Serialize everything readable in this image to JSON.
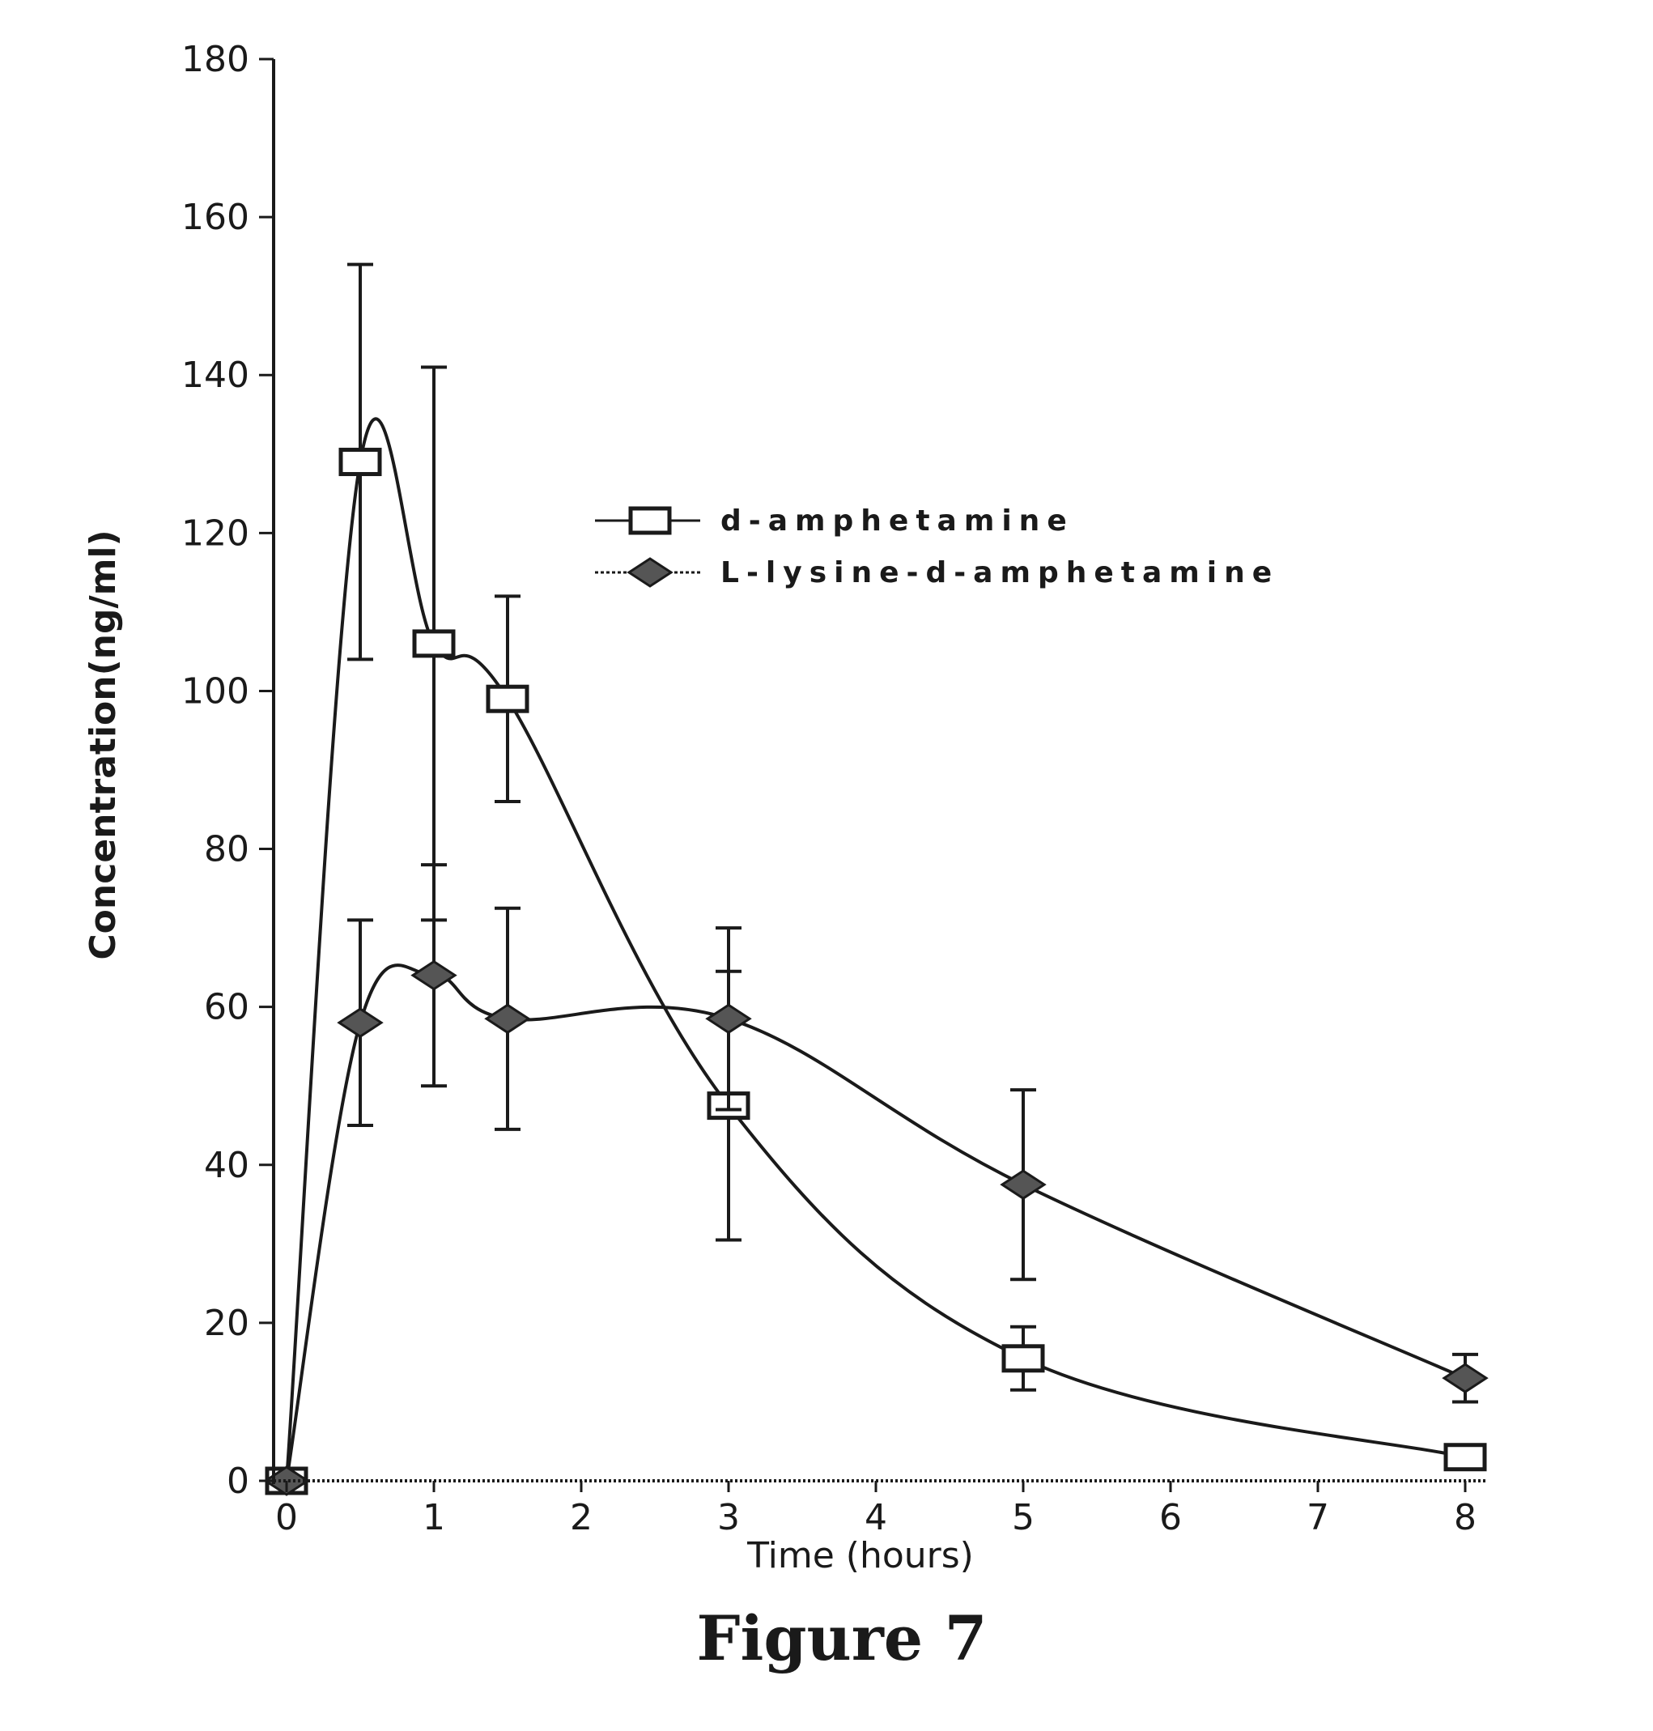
{
  "chart_data": {
    "type": "line",
    "title": "",
    "caption": "Figure 7",
    "xlabel": "Time (hours)",
    "ylabel": "Concentration(ng/ml)",
    "x_tick_labels": [
      "0",
      "1",
      "2",
      "3",
      "4",
      "5",
      "6",
      "7",
      "8"
    ],
    "y_ticks": [
      0,
      20,
      40,
      60,
      80,
      100,
      120,
      140,
      160,
      180
    ],
    "xlim": [
      0,
      8
    ],
    "ylim": [
      0,
      180
    ],
    "grid": false,
    "legend_position": "upper-right",
    "series": [
      {
        "name": "d-amphetamine",
        "marker": "open-square",
        "color": "#1a1a1a",
        "x": [
          0,
          0.5,
          1,
          1.5,
          3,
          5,
          8
        ],
        "y": [
          0,
          129,
          106,
          99,
          47.5,
          15.5,
          3
        ],
        "error": [
          0,
          25,
          35,
          13,
          17,
          4,
          0
        ]
      },
      {
        "name": "L-lysine-d-amphetamine",
        "marker": "filled-diamond",
        "color": "#1a1a1a",
        "x": [
          0,
          0.5,
          1,
          1.5,
          3,
          5,
          8
        ],
        "y": [
          0,
          58,
          64,
          58.5,
          58.5,
          37.5,
          13
        ],
        "error": [
          0,
          13,
          14,
          14,
          11.5,
          12,
          3
        ]
      }
    ]
  }
}
